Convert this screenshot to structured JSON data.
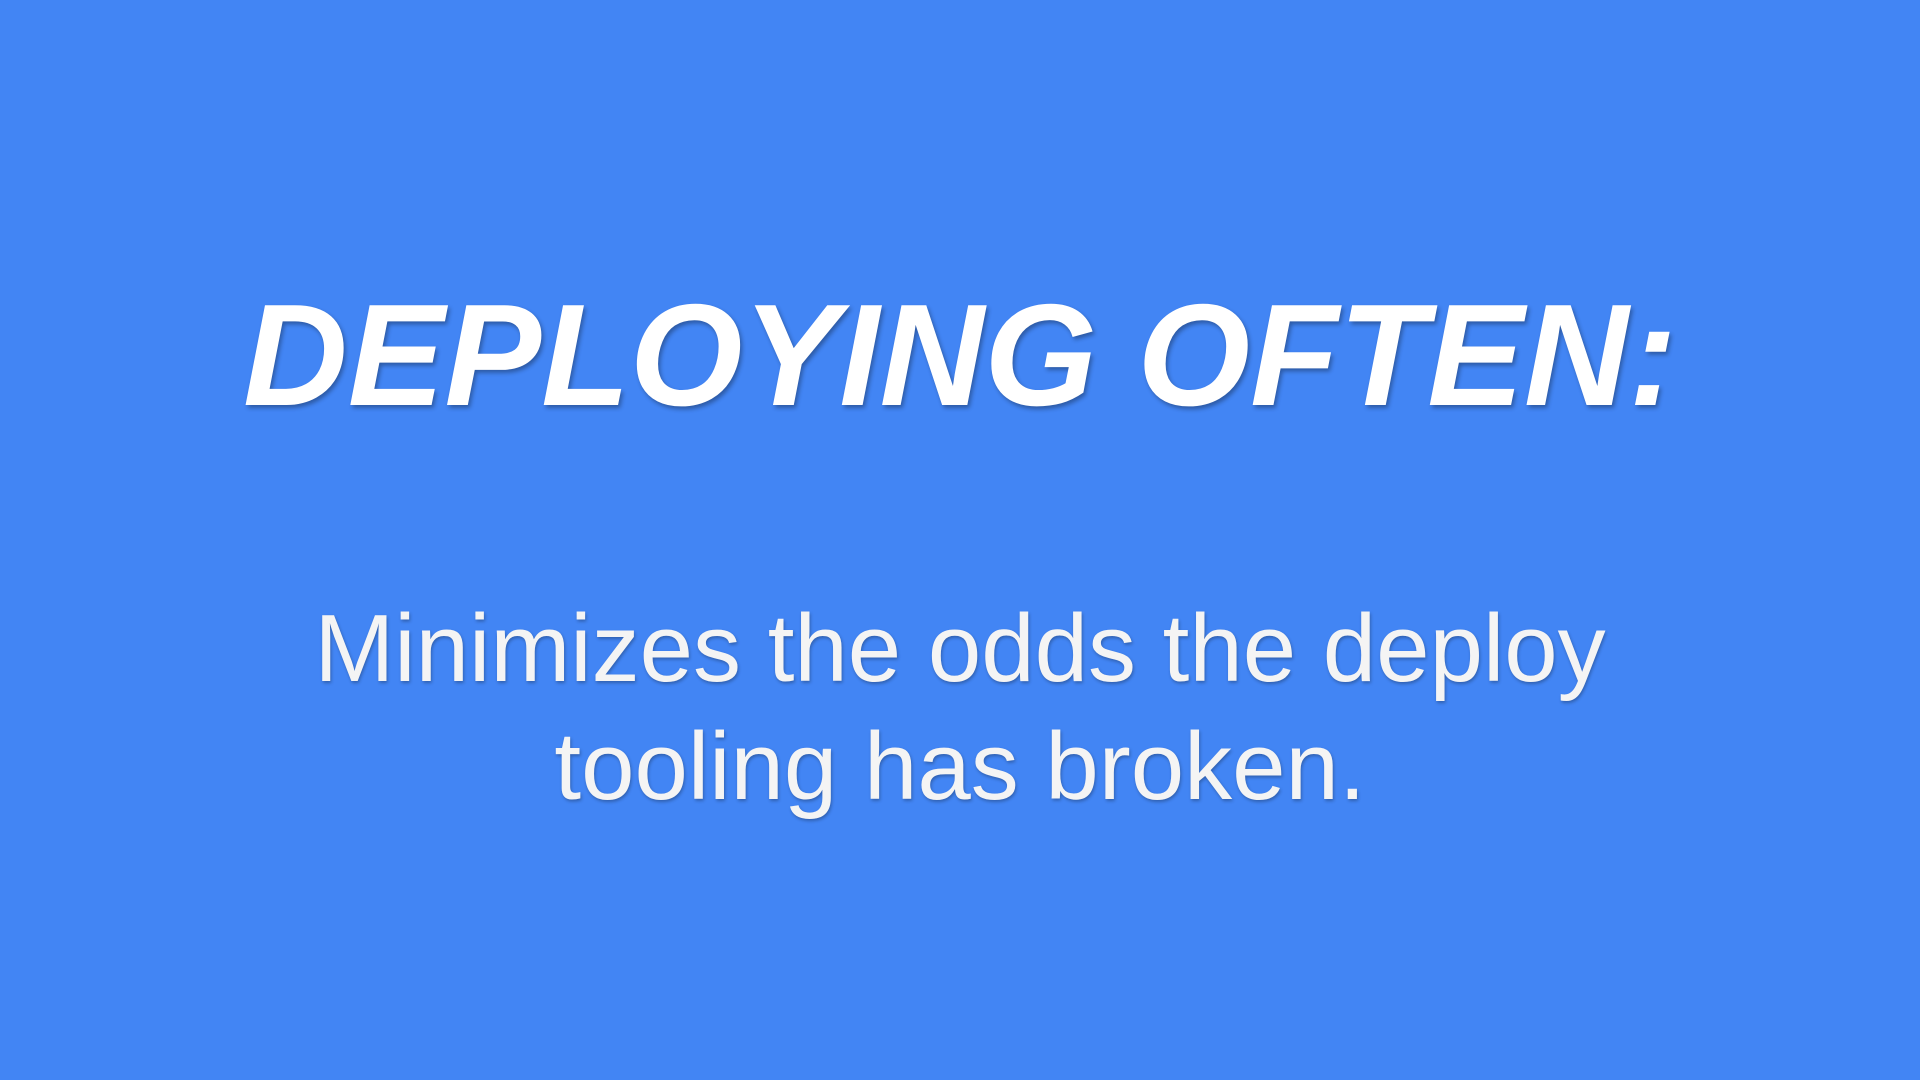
{
  "slide": {
    "background_color": "#4285f4",
    "title": "DEPLOYING OFTEN:",
    "body": "Minimizes the odds the deploy tooling has broken."
  }
}
